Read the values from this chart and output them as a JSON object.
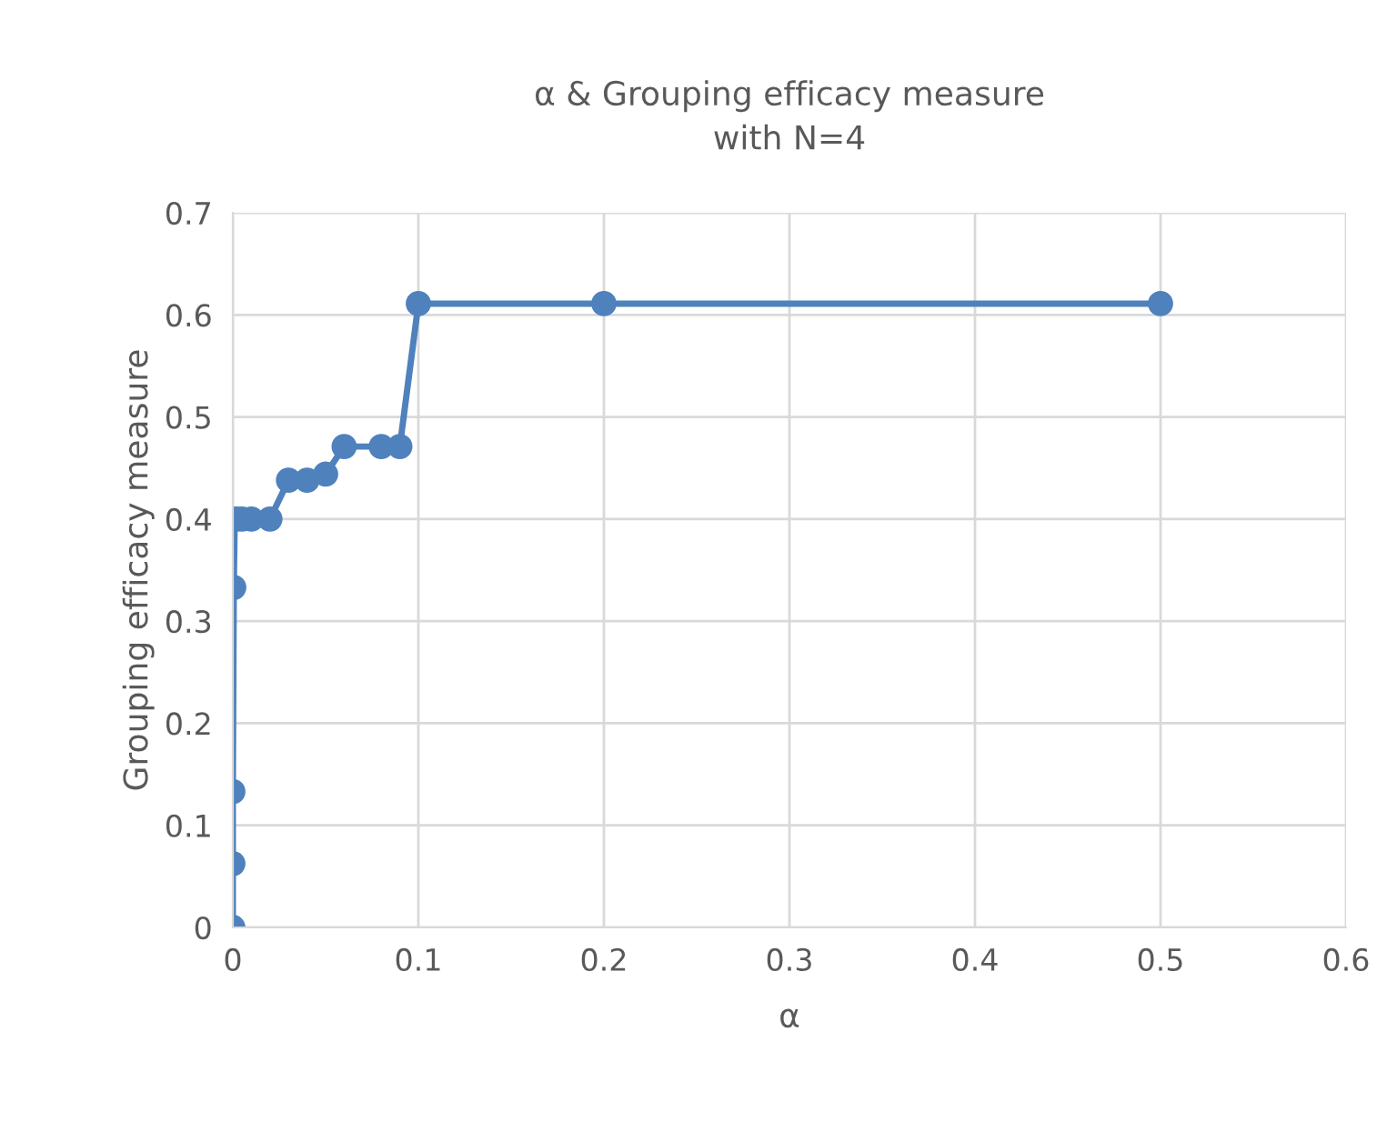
{
  "chart_data": {
    "type": "line",
    "title": "α & Grouping efficacy measure\nwith N=4",
    "xlabel": "α",
    "ylabel": "Grouping efficacy measure",
    "x": [
      0,
      0,
      0,
      0.0005,
      0.001,
      0.002,
      0.005,
      0.01,
      0.02,
      0.03,
      0.04,
      0.05,
      0.06,
      0.08,
      0.09,
      0.1,
      0.2,
      0.5
    ],
    "series": [
      {
        "color": "#4f81bd",
        "values": [
          0,
          0.0625,
          0.133,
          0.333,
          0.4,
          0.4,
          0.4,
          0.4,
          0.4,
          0.438,
          0.438,
          0.444,
          0.471,
          0.471,
          0.471,
          0.611,
          0.611,
          0.611
        ]
      }
    ],
    "xlim": [
      0,
      0.6
    ],
    "ylim": [
      0,
      0.7
    ],
    "xticks": [
      0,
      0.1,
      0.2,
      0.3,
      0.4,
      0.5,
      0.6
    ],
    "yticks": [
      0,
      0.1,
      0.2,
      0.3,
      0.4,
      0.5,
      0.6,
      0.7
    ],
    "grid": true,
    "marker": "circle",
    "line_style": "solid"
  }
}
